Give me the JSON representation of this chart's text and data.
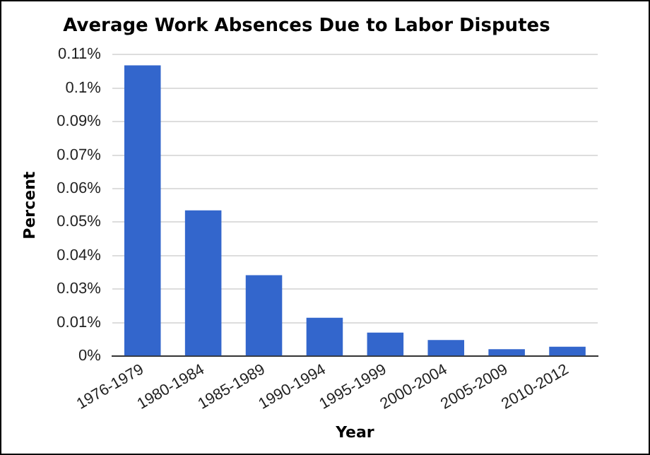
{
  "chart_data": {
    "type": "bar",
    "title": "Average Work Absences Due to Labor Disputes",
    "xlabel": "Year",
    "ylabel": "Percent",
    "categories": [
      "1976-1979",
      "1980-1984",
      "1985-1989",
      "1990-1994",
      "1995-1999",
      "2000-2004",
      "2005-2009",
      "2010-2012"
    ],
    "values": [
      0.1085,
      0.0544,
      0.0302,
      0.0143,
      0.0088,
      0.006,
      0.0026,
      0.0035
    ],
    "color": "#3366cc",
    "ylim": [
      0,
      0.1125
    ],
    "yticks": [
      {
        "value": 0,
        "label": "0%"
      },
      {
        "value": 0.0125,
        "label": "0.01%"
      },
      {
        "value": 0.025,
        "label": "0.03%"
      },
      {
        "value": 0.0375,
        "label": "0.04%"
      },
      {
        "value": 0.05,
        "label": "0.05%"
      },
      {
        "value": 0.0625,
        "label": "0.06%"
      },
      {
        "value": 0.075,
        "label": "0.07%"
      },
      {
        "value": 0.0875,
        "label": "0.09%"
      },
      {
        "value": 0.1,
        "label": "0.1%"
      },
      {
        "value": 0.1125,
        "label": "0.11%"
      }
    ],
    "grid": "y",
    "legend": false
  }
}
